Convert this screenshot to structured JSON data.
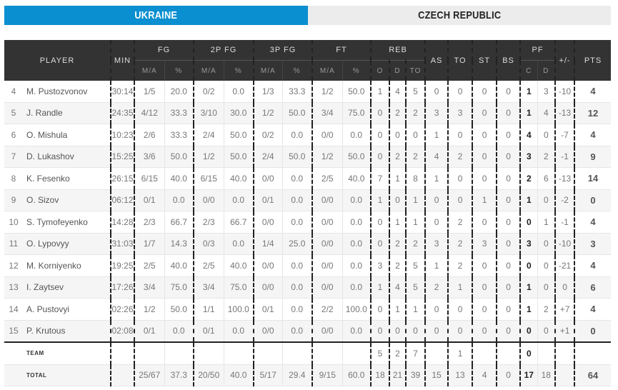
{
  "tabs": [
    {
      "label": "UKRAINE",
      "active": true
    },
    {
      "label": "CZECH REPUBLIC",
      "active": false
    }
  ],
  "colors": {
    "active_tab": "#0a8fd0",
    "inactive_tab": "#ececec",
    "header_bg": "#333333"
  },
  "header": {
    "player": "PLAYER",
    "min": "MIN",
    "fg": "FG",
    "p2": "2P FG",
    "p3": "3P FG",
    "ft": "FT",
    "reb": "REB",
    "as": "AS",
    "to": "TO",
    "st": "ST",
    "bs": "BS",
    "pf": "PF",
    "pm": "+/-",
    "pts": "PTS",
    "ma": "M/A",
    "pct": "%",
    "o": "O",
    "d": "D",
    "tot": "TO",
    "c": "C"
  },
  "players": [
    [
      "4",
      "M. Pustozvonov",
      "30:14",
      "1/5",
      "20.0",
      "0/2",
      "0.0",
      "1/3",
      "33.3",
      "1/2",
      "50.0",
      "1",
      "4",
      "5",
      "0",
      "0",
      "0",
      "0",
      "1",
      "3",
      "-10",
      "4"
    ],
    [
      "5",
      "J. Randle",
      "24:35",
      "4/12",
      "33.3",
      "3/10",
      "30.0",
      "1/2",
      "50.0",
      "3/4",
      "75.0",
      "0",
      "2",
      "2",
      "3",
      "3",
      "0",
      "0",
      "1",
      "4",
      "-13",
      "12"
    ],
    [
      "6",
      "O. Mishula",
      "10:23",
      "2/6",
      "33.3",
      "2/4",
      "50.0",
      "0/2",
      "0.0",
      "0/0",
      "0.0",
      "0",
      "0",
      "0",
      "1",
      "0",
      "0",
      "0",
      "4",
      "0",
      "-7",
      "4"
    ],
    [
      "7",
      "D. Lukashov",
      "15:25",
      "3/6",
      "50.0",
      "1/2",
      "50.0",
      "2/4",
      "50.0",
      "1/2",
      "50.0",
      "0",
      "2",
      "2",
      "4",
      "2",
      "0",
      "0",
      "3",
      "2",
      "-1",
      "9"
    ],
    [
      "8",
      "K. Fesenko",
      "26:15",
      "6/15",
      "40.0",
      "6/15",
      "40.0",
      "0/0",
      "0.0",
      "2/5",
      "40.0",
      "7",
      "1",
      "8",
      "1",
      "0",
      "0",
      "0",
      "2",
      "6",
      "-13",
      "14"
    ],
    [
      "9",
      "O. Sizov",
      "06:12",
      "0/1",
      "0.0",
      "0/0",
      "0.0",
      "0/1",
      "0.0",
      "0/0",
      "0.0",
      "1",
      "0",
      "1",
      "0",
      "0",
      "1",
      "0",
      "1",
      "0",
      "-2",
      "0"
    ],
    [
      "10",
      "S. Tymofeyenko",
      "14:28",
      "2/3",
      "66.7",
      "2/3",
      "66.7",
      "0/0",
      "0.0",
      "0/0",
      "0.0",
      "0",
      "1",
      "1",
      "0",
      "2",
      "0",
      "0",
      "0",
      "1",
      "-1",
      "4"
    ],
    [
      "11",
      "O. Lypovyy",
      "31:03",
      "1/7",
      "14.3",
      "0/3",
      "0.0",
      "1/4",
      "25.0",
      "0/0",
      "0.0",
      "0",
      "2",
      "2",
      "3",
      "2",
      "3",
      "0",
      "3",
      "0",
      "-10",
      "3"
    ],
    [
      "12",
      "M. Korniyenko",
      "19:25",
      "2/5",
      "40.0",
      "2/5",
      "40.0",
      "0/0",
      "0.0",
      "0/0",
      "0.0",
      "3",
      "2",
      "5",
      "1",
      "2",
      "0",
      "0",
      "0",
      "0",
      "-21",
      "4"
    ],
    [
      "13",
      "I. Zaytsev",
      "17:26",
      "3/4",
      "75.0",
      "3/4",
      "75.0",
      "0/0",
      "0.0",
      "0/0",
      "0.0",
      "1",
      "4",
      "5",
      "2",
      "1",
      "0",
      "0",
      "1",
      "0",
      "0",
      "6"
    ],
    [
      "14",
      "A. Pustovyi",
      "02:26",
      "1/2",
      "50.0",
      "1/1",
      "100.0",
      "0/1",
      "0.0",
      "2/2",
      "100.0",
      "0",
      "1",
      "1",
      "0",
      "0",
      "0",
      "0",
      "1",
      "2",
      "+7",
      "4"
    ],
    [
      "15",
      "P. Krutous",
      "02:08",
      "0/1",
      "0.0",
      "0/1",
      "0.0",
      "0/0",
      "0.0",
      "0/0",
      "0.0",
      "0",
      "0",
      "0",
      "0",
      "0",
      "0",
      "0",
      "0",
      "0",
      "+1",
      "0"
    ]
  ],
  "team": [
    "",
    "TEAM",
    "",
    "",
    "",
    "",
    "",
    "",
    "",
    "",
    "",
    "5",
    "2",
    "7",
    "",
    "1",
    "",
    "",
    "0",
    "",
    "",
    ""
  ],
  "total": [
    "",
    "TOTAL",
    "",
    "25/67",
    "37.3",
    "20/50",
    "40.0",
    "5/17",
    "29.4",
    "9/15",
    "60.0",
    "18",
    "21",
    "39",
    "15",
    "13",
    "4",
    "0",
    "17",
    "18",
    "",
    "64"
  ]
}
